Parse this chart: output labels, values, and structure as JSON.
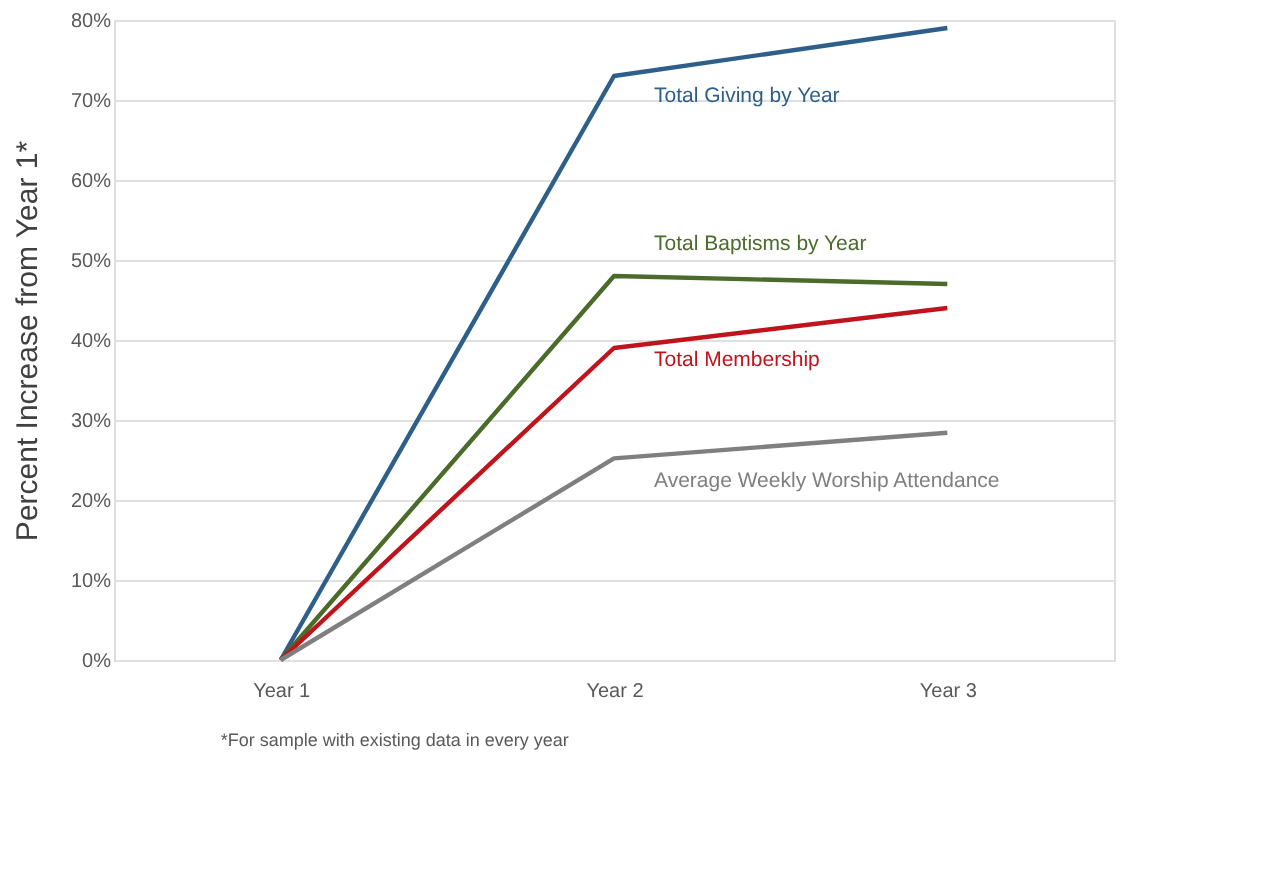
{
  "chart_data": {
    "type": "line",
    "ylabel": "Percent Increase from Year 1*",
    "categories": [
      "Year 1",
      "Year 2",
      "Year 3"
    ],
    "series": [
      {
        "name": "Total Giving by Year",
        "color": "#2e5f8a",
        "values": [
          0,
          73,
          79
        ]
      },
      {
        "name": "Total Baptisms by Year",
        "color": "#4a6b2a",
        "values": [
          0,
          48,
          47
        ]
      },
      {
        "name": "Total Membership",
        "color": "#c0141c",
        "values": [
          0,
          39,
          44
        ]
      },
      {
        "name": "Average Weekly Worship Attendance",
        "color": "#7f7f7f",
        "values": [
          0,
          25.2,
          28.4
        ]
      }
    ],
    "ylim": [
      0,
      80
    ],
    "yticks": [
      {
        "value": 0,
        "label": "0%"
      },
      {
        "value": 10,
        "label": "10%"
      },
      {
        "value": 20,
        "label": "20%"
      },
      {
        "value": 30,
        "label": "30%"
      },
      {
        "value": 40,
        "label": "40%"
      },
      {
        "value": 50,
        "label": "50%"
      },
      {
        "value": 60,
        "label": "60%"
      },
      {
        "value": 70,
        "label": "70%"
      },
      {
        "value": 80,
        "label": "80%"
      }
    ],
    "grid": "y",
    "legend": false,
    "marker": "none",
    "line_style": "solid",
    "annotations": [
      "*For sample with existing data in every year"
    ]
  }
}
